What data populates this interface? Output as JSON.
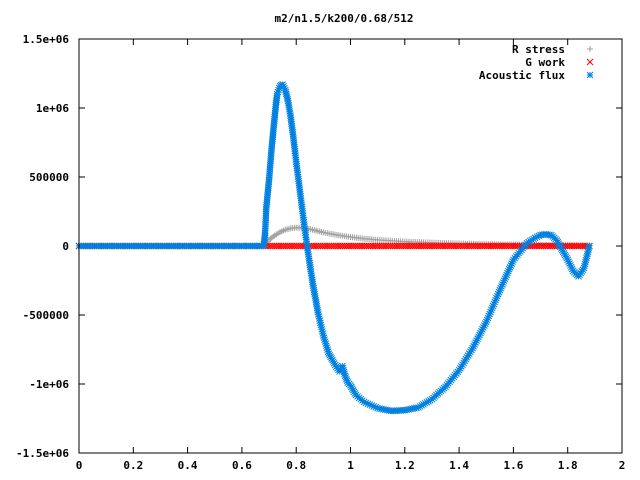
{
  "chart_data": {
    "type": "scatter",
    "title": "m2/n1.5/k200/0.68/512",
    "xlim": [
      0,
      2
    ],
    "ylim": [
      -1500000,
      1500000
    ],
    "x_ticks": [
      0,
      0.2,
      0.4,
      0.6,
      0.8,
      1,
      1.2,
      1.4,
      1.6,
      1.8,
      2
    ],
    "x_tick_labels": [
      "0",
      "0.2",
      "0.4",
      "0.6",
      "0.8",
      "1",
      "1.2",
      "1.4",
      "1.6",
      "1.8",
      "2"
    ],
    "y_ticks": [
      -1500000,
      -1000000,
      -500000,
      0,
      500000,
      1000000,
      1500000
    ],
    "y_tick_labels": [
      "-1.5e+06",
      "-1e+06",
      "-500000",
      "0",
      "500000",
      "1e+06",
      "1.5e+06"
    ],
    "legend_position": "top-right",
    "series": [
      {
        "name": "R stress",
        "marker": "plus",
        "color": "#a0a0a0",
        "x": [
          0,
          0.68,
          0.69,
          0.7,
          0.72,
          0.74,
          0.76,
          0.78,
          0.8,
          0.82,
          0.84,
          0.86,
          0.88,
          0.9,
          0.95,
          1.0,
          1.05,
          1.1,
          1.2,
          1.3,
          1.4,
          1.5,
          1.6,
          1.7,
          1.8,
          1.88
        ],
        "y": [
          0,
          0,
          20000,
          45000,
          75000,
          100000,
          118000,
          128000,
          133000,
          132000,
          126000,
          118000,
          108000,
          98000,
          80000,
          65000,
          53000,
          44000,
          32000,
          24000,
          18000,
          13000,
          10000,
          7000,
          5000,
          3000
        ]
      },
      {
        "name": "G work",
        "marker": "cross",
        "color": "#ff0000",
        "x": [
          0,
          0.68,
          1.88
        ],
        "y": [
          0,
          0,
          0
        ]
      },
      {
        "name": "Acoustic flux",
        "marker": "star",
        "color": "#0080e0",
        "x": [
          0,
          0.68,
          0.685,
          0.69,
          0.695,
          0.7,
          0.705,
          0.71,
          0.715,
          0.72,
          0.725,
          0.73,
          0.74,
          0.75,
          0.76,
          0.77,
          0.78,
          0.79,
          0.8,
          0.82,
          0.84,
          0.86,
          0.88,
          0.9,
          0.92,
          0.94,
          0.96,
          0.97,
          0.98,
          0.99,
          1.0,
          1.02,
          1.05,
          1.1,
          1.15,
          1.2,
          1.25,
          1.3,
          1.35,
          1.4,
          1.45,
          1.5,
          1.55,
          1.6,
          1.65,
          1.68,
          1.7,
          1.72,
          1.74,
          1.76,
          1.78,
          1.8,
          1.82,
          1.84,
          1.86,
          1.88
        ],
        "y": [
          0,
          0,
          80000,
          280000,
          380000,
          480000,
          600000,
          720000,
          820000,
          920000,
          1020000,
          1100000,
          1160000,
          1170000,
          1130000,
          1050000,
          930000,
          780000,
          610000,
          300000,
          0,
          -260000,
          -480000,
          -650000,
          -780000,
          -850000,
          -910000,
          -870000,
          -940000,
          -990000,
          -1010000,
          -1080000,
          -1130000,
          -1175000,
          -1195000,
          -1190000,
          -1170000,
          -1110000,
          -1020000,
          -900000,
          -740000,
          -550000,
          -320000,
          -100000,
          20000,
          60000,
          80000,
          85000,
          78000,
          40000,
          -30000,
          -100000,
          -180000,
          -220000,
          -160000,
          0
        ]
      }
    ]
  }
}
